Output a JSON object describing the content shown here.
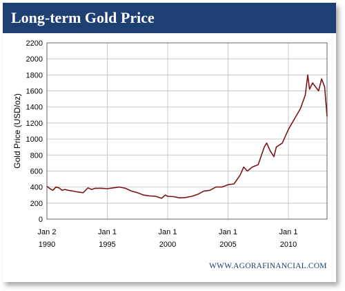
{
  "chart_data": {
    "type": "line",
    "title": "Long-term Gold Price",
    "ylabel": "Gold Price (USD/oz)",
    "xlabel": "",
    "ylim": [
      0,
      2200
    ],
    "y_ticks": [
      "0",
      "200",
      "400",
      "600",
      "800",
      "1000",
      "1200",
      "1400",
      "1600",
      "1800",
      "2000",
      "2200"
    ],
    "x_ticks": [
      {
        "line1": "Jan 2",
        "line2": "1990",
        "t": 1990.0
      },
      {
        "line1": "Jan 1",
        "line2": "1995",
        "t": 1995.0
      },
      {
        "line1": "Jan 1",
        "line2": "2000",
        "t": 2000.0
      },
      {
        "line1": "Jan 1",
        "line2": "2005",
        "t": 2005.0
      },
      {
        "line1": "Jan 1",
        "line2": "2010",
        "t": 2010.0
      }
    ],
    "xlim": [
      1990.0,
      2013.2
    ],
    "grid": true,
    "series": [
      {
        "color": "#7b1416",
        "x": [
          1990.0,
          1990.25,
          1990.5,
          1990.75,
          1991.0,
          1991.25,
          1991.5,
          1991.75,
          1992.0,
          1992.5,
          1993.0,
          1993.4,
          1993.7,
          1994.0,
          1994.5,
          1995.0,
          1995.5,
          1996.0,
          1996.5,
          1997.0,
          1997.5,
          1998.0,
          1998.5,
          1999.0,
          1999.5,
          1999.8,
          2000.0,
          2000.5,
          2001.0,
          2001.5,
          2002.0,
          2002.5,
          2003.0,
          2003.5,
          2004.0,
          2004.5,
          2005.0,
          2005.5,
          2006.0,
          2006.3,
          2006.6,
          2007.0,
          2007.5,
          2008.0,
          2008.2,
          2008.5,
          2008.8,
          2009.0,
          2009.5,
          2010.0,
          2010.5,
          2011.0,
          2011.4,
          2011.6,
          2011.75,
          2012.0,
          2012.25,
          2012.5,
          2012.75,
          2013.0,
          2013.2
        ],
        "y": [
          410,
          380,
          360,
          400,
          390,
          360,
          370,
          360,
          355,
          340,
          330,
          390,
          370,
          385,
          385,
          380,
          390,
          400,
          385,
          350,
          330,
          300,
          290,
          285,
          260,
          300,
          285,
          280,
          265,
          270,
          285,
          310,
          350,
          360,
          400,
          400,
          430,
          440,
          550,
          650,
          600,
          650,
          680,
          900,
          950,
          850,
          780,
          900,
          950,
          1120,
          1250,
          1380,
          1550,
          1800,
          1620,
          1700,
          1650,
          1600,
          1750,
          1650,
          1280
        ]
      }
    ]
  },
  "footer": {
    "source": "WWW.AGORAFINANCIAL.COM"
  }
}
